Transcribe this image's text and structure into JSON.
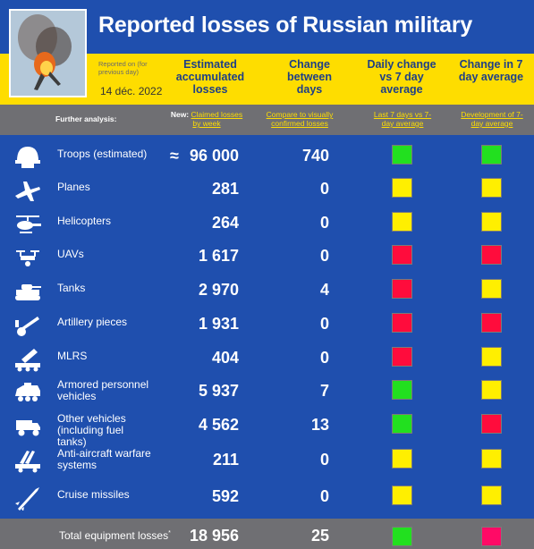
{
  "title": "Reported losses of Russian military",
  "reported_on_label": "Reported on (for previous day)",
  "report_date": "14 déc. 2022",
  "columns": {
    "accumulated": "Estimated accumulated losses",
    "change": "Change between days",
    "daily_vs_avg": "Daily change vs 7 day average",
    "change_7day": "Change in 7 day average"
  },
  "further_analysis_label": "Further analysis:",
  "links": {
    "new_label": "New:",
    "claimed_by_week": "Claimed losses by week",
    "compare_visual": "Compare to visually confirmed losses",
    "last7_vs_avg": "Last 7 days vs 7-day average",
    "development_avg": "Development of 7-day average"
  },
  "colors": {
    "green": "#22e01f",
    "yellow": "#ffef00",
    "red": "#ff0c3c",
    "pink": "#ff0a66"
  },
  "rows": [
    {
      "icon": "helmet-icon",
      "label": "Troops (estimated)",
      "approx": "≈",
      "value": "96 000",
      "change": "740",
      "daily": "green",
      "avg": "green"
    },
    {
      "icon": "plane-icon",
      "label": "Planes",
      "approx": "",
      "value": "281",
      "change": "0",
      "daily": "yellow",
      "avg": "yellow"
    },
    {
      "icon": "helicopter-icon",
      "label": "Helicopters",
      "approx": "",
      "value": "264",
      "change": "0",
      "daily": "yellow",
      "avg": "yellow"
    },
    {
      "icon": "drone-icon",
      "label": "UAVs",
      "approx": "",
      "value": "1 617",
      "change": "0",
      "daily": "red",
      "avg": "red"
    },
    {
      "icon": "tank-icon",
      "label": "Tanks",
      "approx": "",
      "value": "2 970",
      "change": "4",
      "daily": "red",
      "avg": "yellow"
    },
    {
      "icon": "artillery-icon",
      "label": "Artillery pieces",
      "approx": "",
      "value": "1 931",
      "change": "0",
      "daily": "red",
      "avg": "red"
    },
    {
      "icon": "mlrs-icon",
      "label": "MLRS",
      "approx": "",
      "value": "404",
      "change": "0",
      "daily": "red",
      "avg": "yellow"
    },
    {
      "icon": "apc-icon",
      "label": "Armored personnel vehicles",
      "approx": "",
      "value": "5 937",
      "change": "7",
      "daily": "green",
      "avg": "yellow"
    },
    {
      "icon": "truck-icon",
      "label": "Other vehicles (including fuel tanks)",
      "approx": "",
      "value": "4 562",
      "change": "13",
      "daily": "green",
      "avg": "red"
    },
    {
      "icon": "anti-aircraft-icon",
      "label": "Anti-aircraft warfare systems",
      "approx": "",
      "value": "211",
      "change": "0",
      "daily": "yellow",
      "avg": "yellow"
    },
    {
      "icon": "missile-icon",
      "label": "Cruise missiles",
      "approx": "",
      "value": "592",
      "change": "0",
      "daily": "yellow",
      "avg": "yellow"
    }
  ],
  "total": {
    "label": "Total equipment losses",
    "footnote_mark": "*",
    "value": "18 956",
    "change": "25",
    "daily": "green",
    "avg": "pink"
  }
}
